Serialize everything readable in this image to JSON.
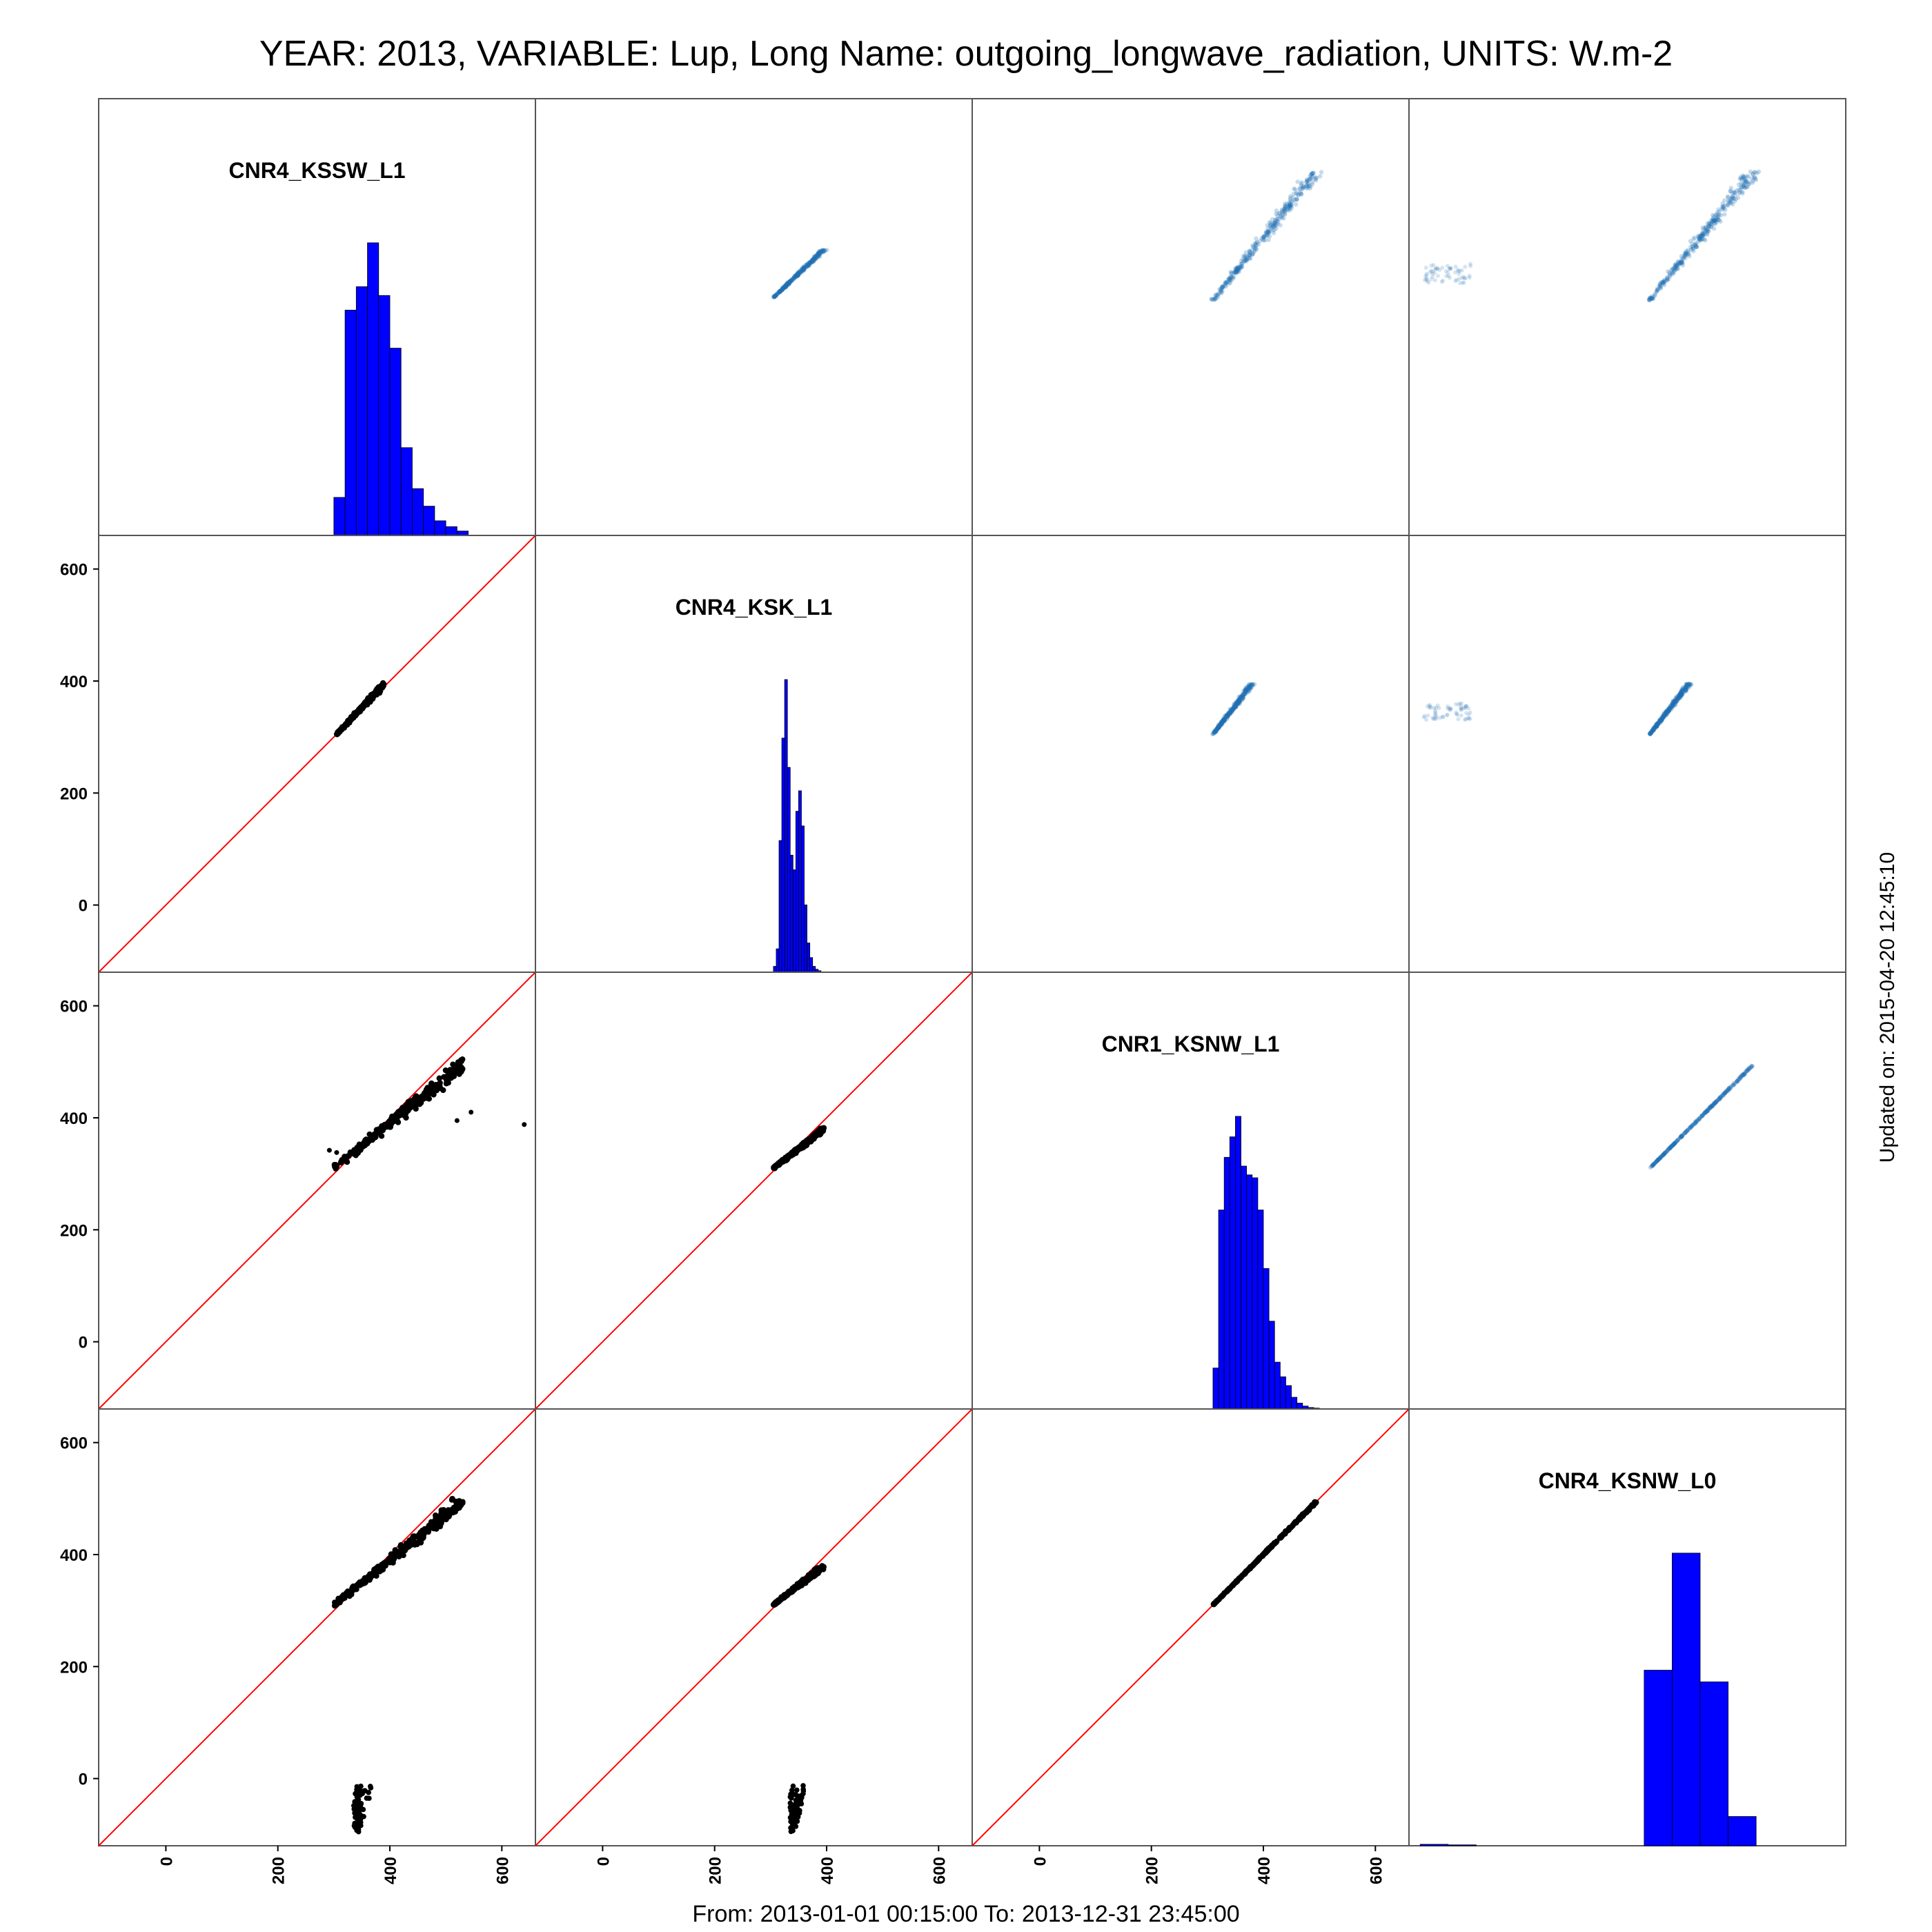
{
  "title": "YEAR: 2013, VARIABLE: Lup, Long Name: outgoing_longwave_radiation, UNITS: W.m-2",
  "footer": "From: 2013-01-01 00:15:00 To: 2013-12-31 23:45:00",
  "updated": "Updated on: 2015-04-20 12:45:10",
  "colors": {
    "histogram": "#0000ff",
    "scatter_points": "#000000",
    "density": "#1f6fb2",
    "identity_line": "#ff0000",
    "frame": "#555555"
  },
  "chart_data": {
    "type": "scatter",
    "subtype": "scatterplot-matrix",
    "variables": [
      "CNR4_KSSW_L1",
      "CNR4_KSK_L1",
      "CNR1_KSNW_L1",
      "CNR4_KSNW_L0"
    ],
    "axis_range": [
      -120,
      660
    ],
    "ticks": [
      0,
      200,
      400,
      600
    ],
    "tick_labels": [
      "0",
      "200",
      "400",
      "600"
    ],
    "grid": false,
    "diagonal": "histogram",
    "lower_panels": "scatter with 1:1 line",
    "upper_panels": "density scatter",
    "histograms": [
      {
        "variable": "CNR4_KSSW_L1",
        "bin_width": 20,
        "bins": [
          300,
          320,
          340,
          360,
          380,
          400,
          420,
          440,
          460,
          480,
          500,
          520
        ],
        "values": [
          0.13,
          0.77,
          0.85,
          1.0,
          0.82,
          0.64,
          0.3,
          0.16,
          0.1,
          0.05,
          0.03,
          0.015
        ]
      },
      {
        "variable": "CNR4_KSK_L1",
        "bin_width": 5,
        "bins": [
          305,
          310,
          315,
          320,
          325,
          330,
          335,
          340,
          345,
          350,
          355,
          360,
          365,
          370,
          375,
          380,
          385
        ],
        "values": [
          0.02,
          0.08,
          0.45,
          0.8,
          1.0,
          0.7,
          0.4,
          0.35,
          0.55,
          0.62,
          0.5,
          0.23,
          0.1,
          0.05,
          0.02,
          0.01,
          0.005
        ]
      },
      {
        "variable": "CNR1_KSNW_L1",
        "bin_width": 10,
        "bins": [
          310,
          320,
          330,
          340,
          350,
          360,
          370,
          380,
          390,
          400,
          410,
          420,
          430,
          440,
          450,
          460,
          470,
          480,
          490
        ],
        "values": [
          0.14,
          0.68,
          0.86,
          0.93,
          1.0,
          0.83,
          0.8,
          0.79,
          0.68,
          0.48,
          0.3,
          0.16,
          0.11,
          0.08,
          0.04,
          0.02,
          0.01,
          0.005,
          0.003
        ]
      },
      {
        "variable": "CNR4_KSNW_L0",
        "bin_width": 50,
        "bins": [
          -100,
          -50,
          300,
          350,
          400,
          450
        ],
        "values": [
          0.005,
          0.003,
          0.6,
          1.0,
          0.56,
          0.1
        ]
      }
    ],
    "scatter_pairs": [
      {
        "x": "CNR4_KSSW_L1",
        "y": "CNR4_KSK_L1",
        "x_range": [
          305,
          390
        ],
        "y_range": [
          305,
          395
        ],
        "spread": "narrow band on 1:1 line"
      },
      {
        "x": "CNR4_KSSW_L1",
        "y": "CNR1_KSNW_L1",
        "x_range": [
          300,
          530
        ],
        "y_range": [
          310,
          495
        ],
        "spread": "wide band below 1:1 line",
        "outliers": [
          [
            292,
            342
          ],
          [
            305,
            338
          ],
          [
            520,
            395
          ],
          [
            545,
            410
          ],
          [
            640,
            388
          ]
        ]
      },
      {
        "x": "CNR4_KSK_L1",
        "y": "CNR1_KSNW_L1",
        "x_range": [
          305,
          395
        ],
        "y_range": [
          310,
          380
        ],
        "spread": "narrow band"
      },
      {
        "x": "CNR4_KSSW_L1",
        "y": "CNR4_KSNW_L0",
        "x_range": [
          300,
          530
        ],
        "y_range": [
          310,
          495
        ],
        "spread": "wide band below 1:1 line",
        "outlier_cluster": {
          "x_range": [
            330,
            365
          ],
          "y_range": [
            -95,
            -10
          ]
        }
      },
      {
        "x": "CNR4_KSK_L1",
        "y": "CNR4_KSNW_L0",
        "x_range": [
          305,
          395
        ],
        "y_range": [
          310,
          380
        ],
        "spread": "narrow band",
        "outlier_cluster": {
          "x_range": [
            330,
            360
          ],
          "y_range": [
            -95,
            -10
          ]
        }
      },
      {
        "x": "CNR1_KSNW_L1",
        "y": "CNR4_KSNW_L0",
        "x_range": [
          310,
          495
        ],
        "y_range": [
          310,
          495
        ],
        "spread": "tight line on 1:1"
      }
    ]
  }
}
